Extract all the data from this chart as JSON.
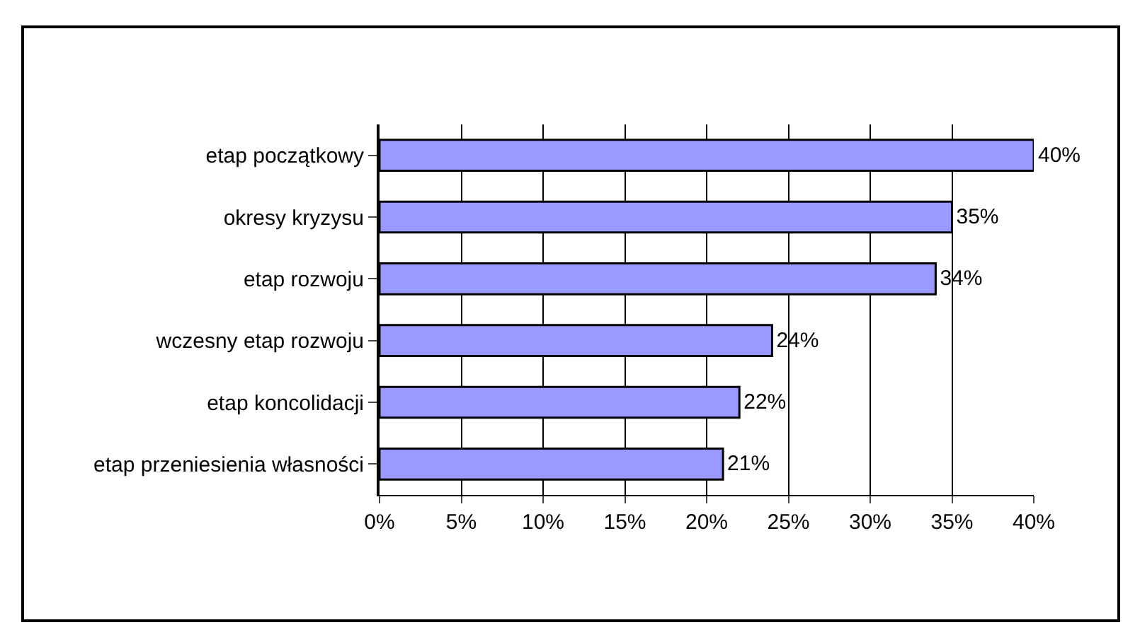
{
  "chart_data": {
    "type": "bar",
    "orientation": "horizontal",
    "categories": [
      "etap początkowy",
      "okresy kryzysu",
      "etap rozwoju",
      "wczesny etap rozwoju",
      "etap koncolidacji",
      "etap przeniesienia własności"
    ],
    "values": [
      40,
      35,
      34,
      24,
      22,
      21
    ],
    "value_labels": [
      "40%",
      "35%",
      "34%",
      "24%",
      "22%",
      "21%"
    ],
    "color": "#9999ff",
    "xlim": [
      0,
      40
    ],
    "xticks": [
      {
        "value": 0,
        "label": "0%"
      },
      {
        "value": 5,
        "label": "5%"
      },
      {
        "value": 10,
        "label": "10%"
      },
      {
        "value": 15,
        "label": "15%"
      },
      {
        "value": 20,
        "label": "20%"
      },
      {
        "value": 25,
        "label": "25%"
      },
      {
        "value": 30,
        "label": "30%"
      },
      {
        "value": 35,
        "label": "35%"
      },
      {
        "value": 40,
        "label": "40%"
      }
    ],
    "grid": "x",
    "legend": false
  }
}
